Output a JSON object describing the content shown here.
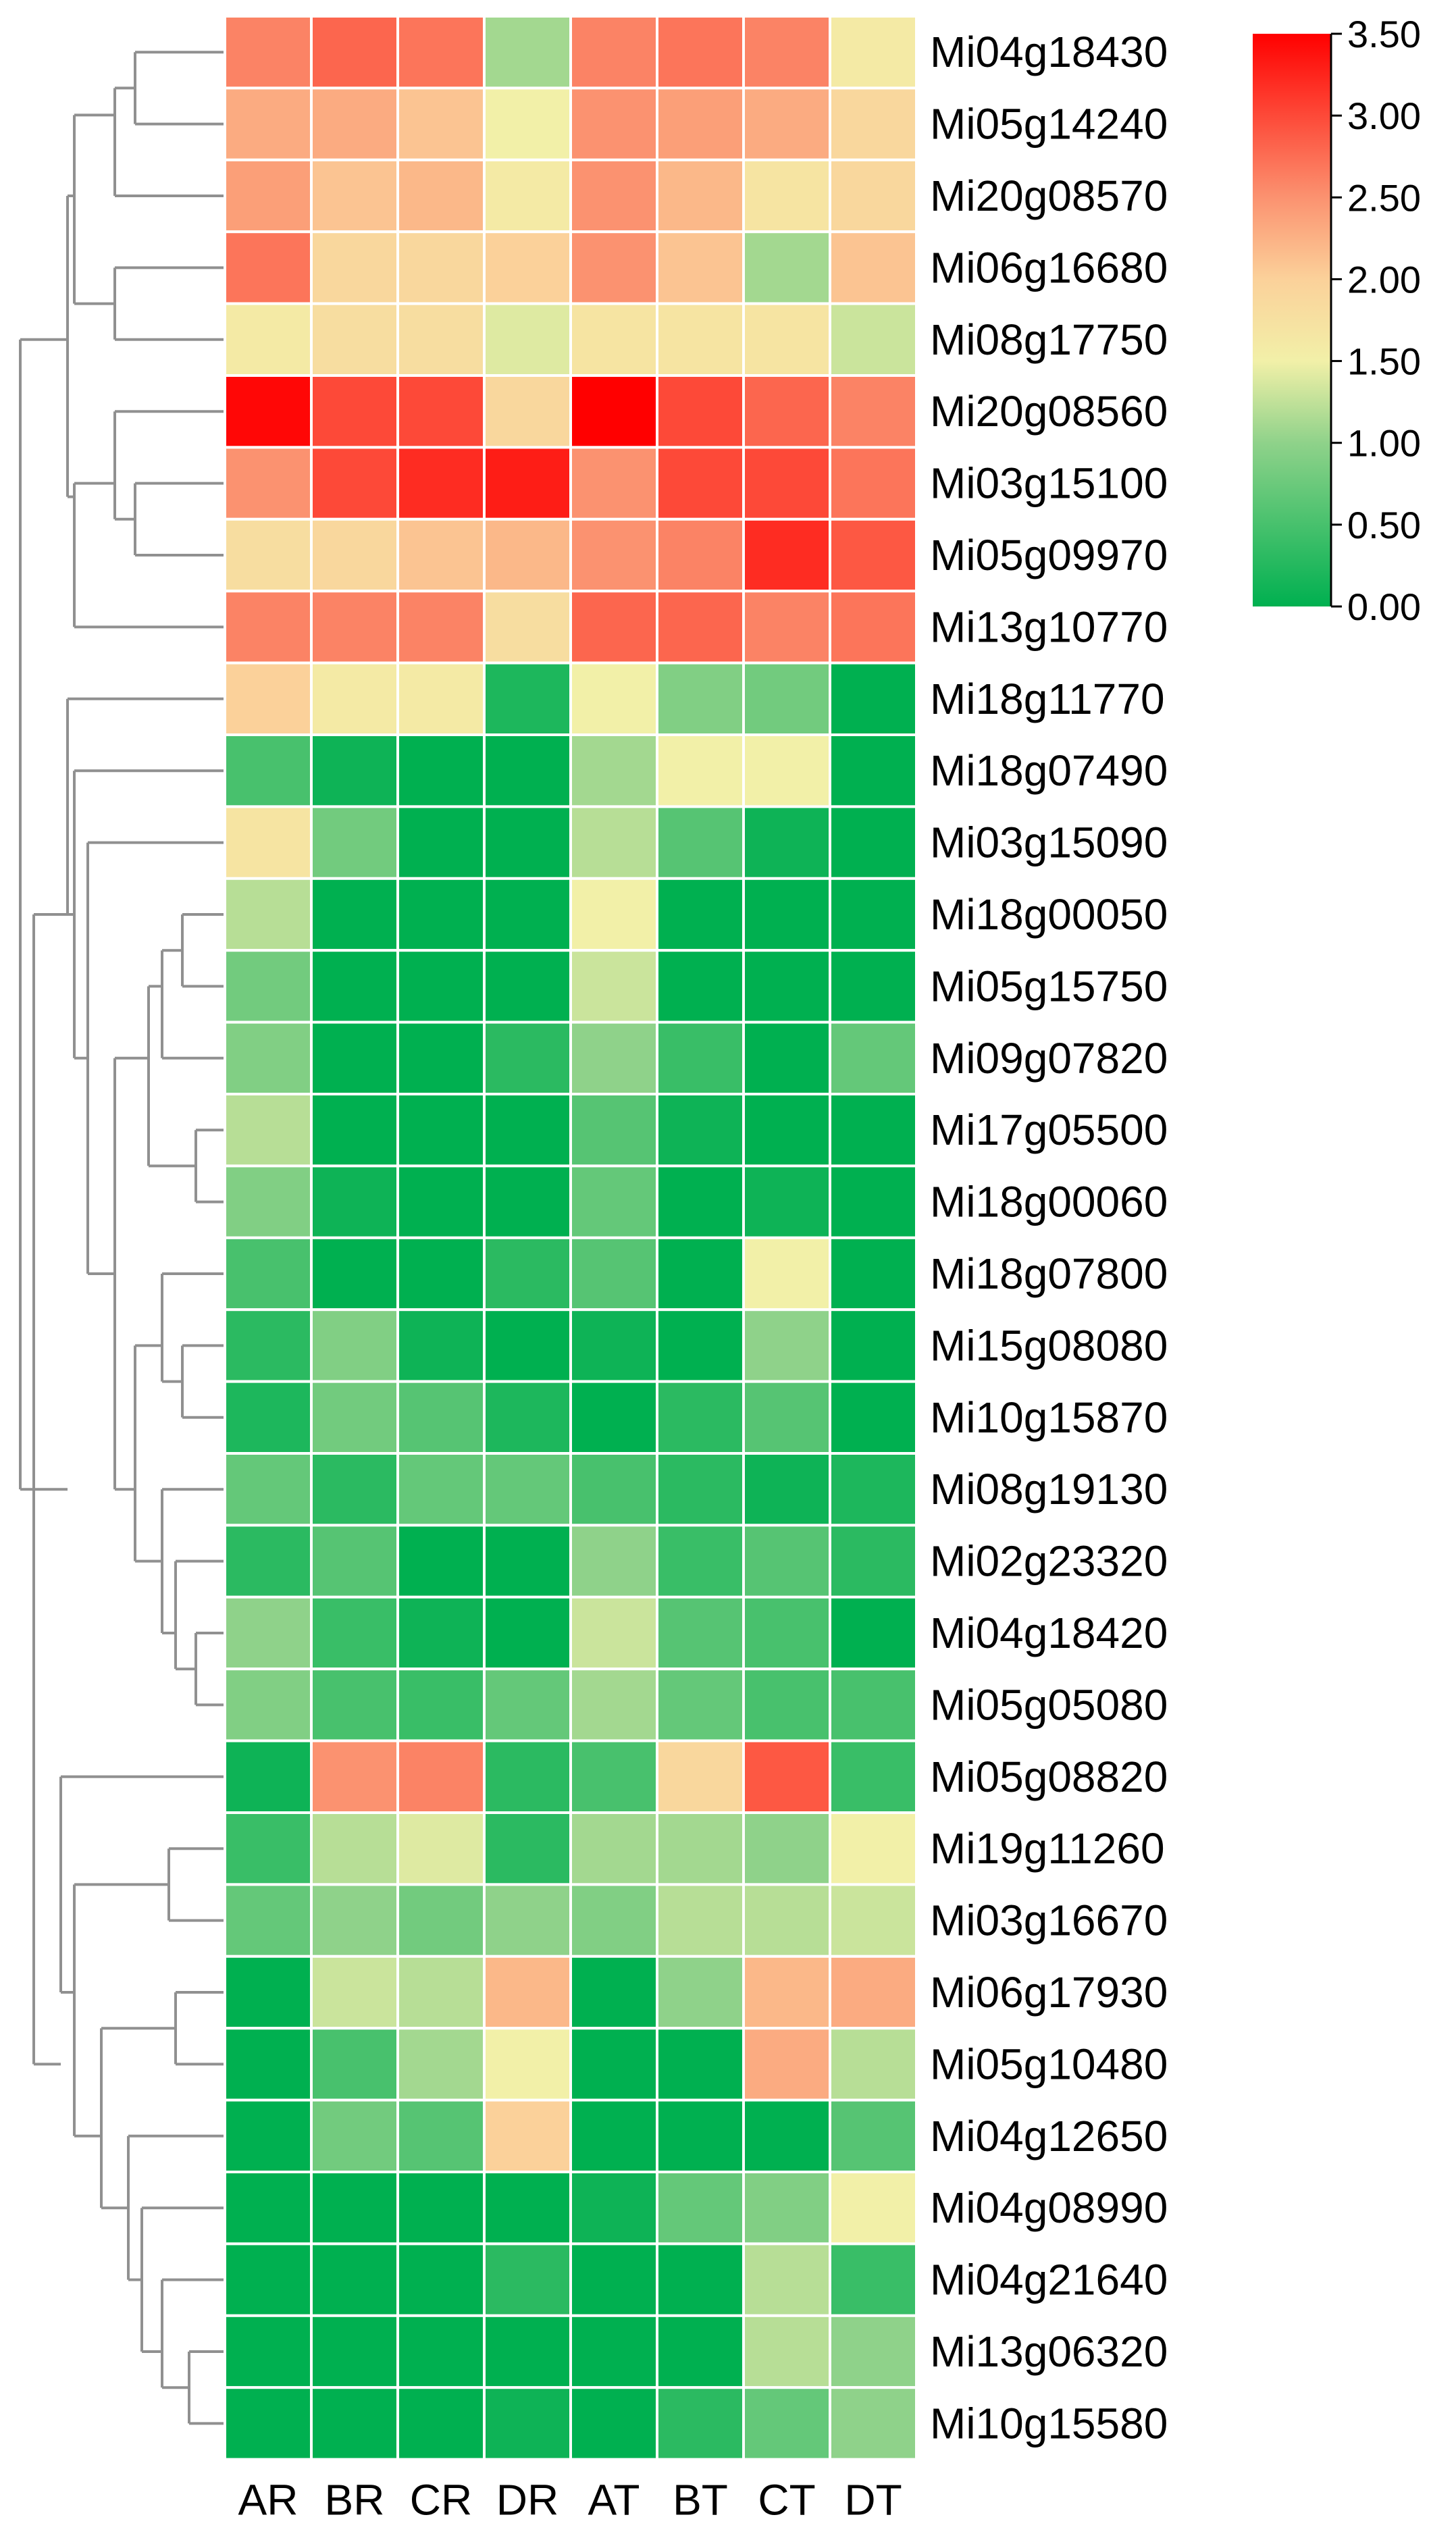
{
  "chart_data": {
    "type": "heatmap",
    "columns": [
      "AR",
      "BR",
      "CR",
      "DR",
      "AT",
      "BT",
      "CT",
      "DT"
    ],
    "rows": [
      "Mi04g18430",
      "Mi05g14240",
      "Mi20g08570",
      "Mi06g16680",
      "Mi08g17750",
      "Mi20g08560",
      "Mi03g15100",
      "Mi05g09970",
      "Mi13g10770",
      "Mi18g11770",
      "Mi18g07490",
      "Mi03g15090",
      "Mi18g00050",
      "Mi05g15750",
      "Mi09g07820",
      "Mi17g05500",
      "Mi18g00060",
      "Mi18g07800",
      "Mi15g08080",
      "Mi10g15870",
      "Mi08g19130",
      "Mi02g23320",
      "Mi04g18420",
      "Mi05g05080",
      "Mi05g08820",
      "Mi19g11260",
      "Mi03g16670",
      "Mi06g17930",
      "Mi05g10480",
      "Mi04g12650",
      "Mi04g08990",
      "Mi04g21640",
      "Mi13g06320",
      "Mi10g15580"
    ],
    "values": [
      [
        2.6,
        2.8,
        2.7,
        1.1,
        2.6,
        2.7,
        2.6,
        1.6
      ],
      [
        2.3,
        2.3,
        2.1,
        1.5,
        2.5,
        2.4,
        2.3,
        1.9
      ],
      [
        2.4,
        2.1,
        2.2,
        1.6,
        2.5,
        2.2,
        1.7,
        1.9
      ],
      [
        2.7,
        1.9,
        1.9,
        2.0,
        2.5,
        2.1,
        1.1,
        2.1
      ],
      [
        1.6,
        1.8,
        1.8,
        1.4,
        1.7,
        1.7,
        1.7,
        1.3
      ],
      [
        3.45,
        3.0,
        3.0,
        1.9,
        3.5,
        3.0,
        2.8,
        2.6
      ],
      [
        2.5,
        3.0,
        3.2,
        3.3,
        2.5,
        3.0,
        3.0,
        2.7
      ],
      [
        1.8,
        1.9,
        2.1,
        2.2,
        2.5,
        2.6,
        3.2,
        2.9
      ],
      [
        2.6,
        2.6,
        2.6,
        1.8,
        2.8,
        2.8,
        2.6,
        2.7
      ],
      [
        2.0,
        1.6,
        1.6,
        0.2,
        1.5,
        0.9,
        0.8,
        0.0
      ],
      [
        0.5,
        0.1,
        0.0,
        0.0,
        1.1,
        1.5,
        1.5,
        0.0
      ],
      [
        1.7,
        0.8,
        0.0,
        0.0,
        1.2,
        0.6,
        0.1,
        0.0
      ],
      [
        1.2,
        0.0,
        0.0,
        0.0,
        1.5,
        0.0,
        0.0,
        0.0
      ],
      [
        0.8,
        0.0,
        0.0,
        0.0,
        1.3,
        0.0,
        0.0,
        0.0
      ],
      [
        0.9,
        0.0,
        0.0,
        0.3,
        1.0,
        0.4,
        0.0,
        0.7
      ],
      [
        1.2,
        0.0,
        0.0,
        0.0,
        0.6,
        0.1,
        0.0,
        0.0
      ],
      [
        0.9,
        0.1,
        0.0,
        0.0,
        0.7,
        0.0,
        0.1,
        0.0
      ],
      [
        0.5,
        0.0,
        0.0,
        0.3,
        0.6,
        0.0,
        1.5,
        0.0
      ],
      [
        0.3,
        0.9,
        0.1,
        0.0,
        0.1,
        0.0,
        1.0,
        0.0
      ],
      [
        0.2,
        0.8,
        0.6,
        0.2,
        0.0,
        0.3,
        0.6,
        0.0
      ],
      [
        0.7,
        0.3,
        0.7,
        0.7,
        0.5,
        0.3,
        0.1,
        0.2
      ],
      [
        0.3,
        0.6,
        0.0,
        0.0,
        1.0,
        0.4,
        0.6,
        0.3
      ],
      [
        1.0,
        0.4,
        0.1,
        0.0,
        1.3,
        0.6,
        0.5,
        0.0
      ],
      [
        0.9,
        0.5,
        0.4,
        0.7,
        1.1,
        0.7,
        0.5,
        0.5
      ],
      [
        0.1,
        2.5,
        2.6,
        0.3,
        0.5,
        1.9,
        2.9,
        0.4
      ],
      [
        0.4,
        1.2,
        1.4,
        0.3,
        1.1,
        1.1,
        1.0,
        1.5
      ],
      [
        0.7,
        1.0,
        0.8,
        1.0,
        0.9,
        1.2,
        1.2,
        1.3
      ],
      [
        0.0,
        1.3,
        1.2,
        2.2,
        0.0,
        1.0,
        2.2,
        2.3
      ],
      [
        0.0,
        0.5,
        1.1,
        1.5,
        0.0,
        0.0,
        2.3,
        1.2
      ],
      [
        0.0,
        0.8,
        0.6,
        2.0,
        0.0,
        0.0,
        0.0,
        0.6
      ],
      [
        0.0,
        0.0,
        0.0,
        0.0,
        0.1,
        0.7,
        0.9,
        1.5
      ],
      [
        0.0,
        0.0,
        0.0,
        0.3,
        0.0,
        0.0,
        1.2,
        0.4
      ],
      [
        0.0,
        0.0,
        0.0,
        0.0,
        0.0,
        0.0,
        1.2,
        1.0
      ],
      [
        0.0,
        0.0,
        0.0,
        0.1,
        0.0,
        0.3,
        0.7,
        1.0
      ]
    ],
    "colorbar": {
      "ticks": [
        "3.50",
        "3.00",
        "2.50",
        "2.00",
        "1.50",
        "1.00",
        "0.50",
        "0.00"
      ],
      "min": 0,
      "max": 3.5,
      "colors": {
        "low": "#00b050",
        "mid": "#f2f0a8",
        "high": "#ff0000"
      }
    },
    "dendrogram": {
      "side": "left",
      "color": "#909090",
      "clusters": [
        {
          "members": [
            0,
            8
          ]
        },
        {
          "members": [
            9,
            23
          ]
        },
        {
          "members": [
            24,
            33
          ]
        }
      ]
    }
  }
}
